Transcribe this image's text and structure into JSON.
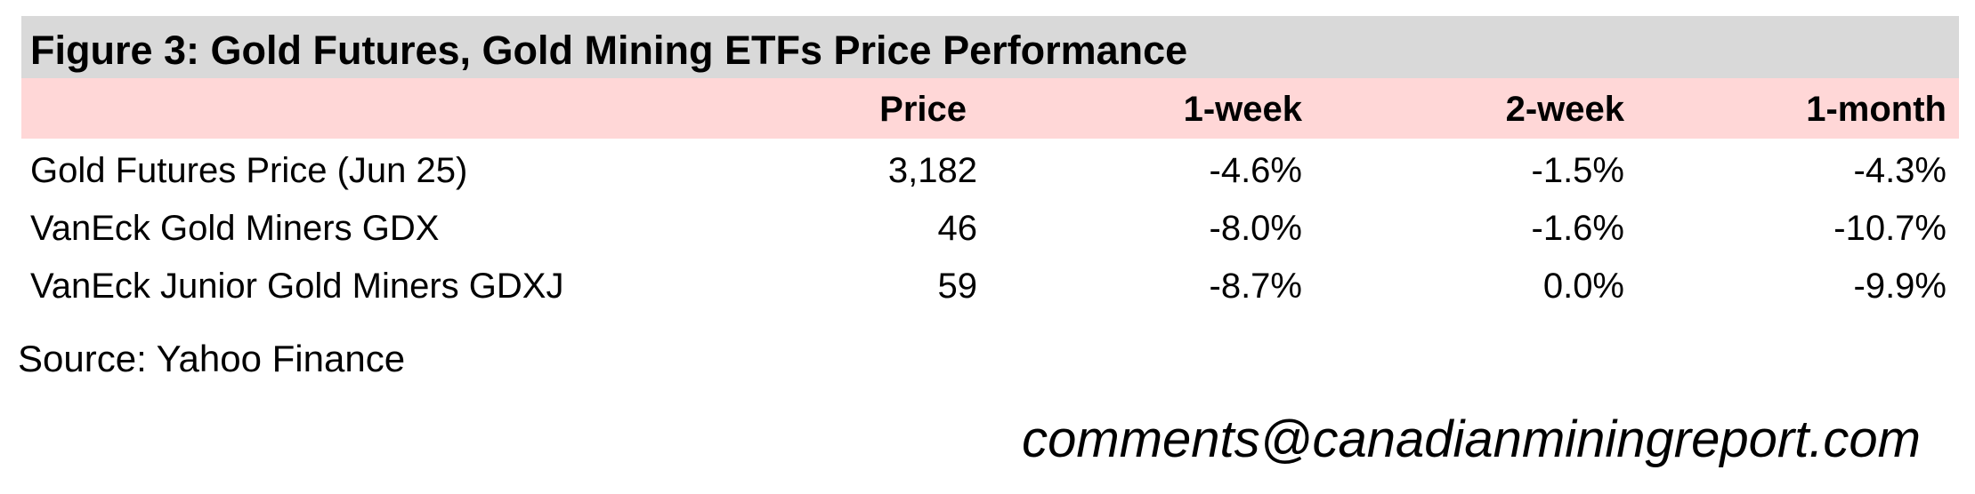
{
  "header": {
    "title": "Figure 3: Gold Futures, Gold Mining ETFs Price Performance"
  },
  "table": {
    "columns": [
      "Price",
      "1-week",
      "2-week",
      "1-month"
    ],
    "rows": [
      [
        "Gold Futures Price (Jun 25)",
        "3,182",
        "-4.6%",
        "-1.5%",
        "-4.3%"
      ],
      [
        "VanEck Gold Miners GDX",
        "46",
        "-8.0%",
        "-1.6%",
        "-10.7%"
      ],
      [
        "VanEck Junior Gold Miners GDXJ",
        "59",
        "-8.7%",
        "0.0%",
        "-9.9%"
      ]
    ]
  },
  "footer": {
    "source": "Source: Yahoo Finance",
    "contact": "comments@canadianminingreport.com"
  }
}
